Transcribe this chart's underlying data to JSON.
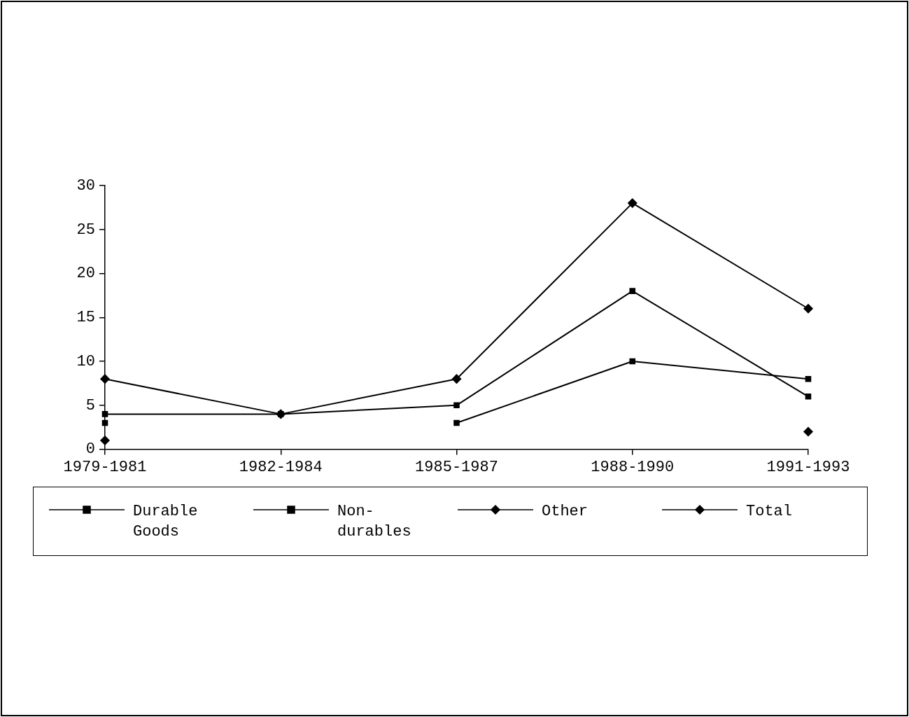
{
  "chart_data": {
    "type": "line",
    "categories": [
      "1979-1981",
      "1982-1984",
      "1985-1987",
      "1988-1990",
      "1991-1993"
    ],
    "ylim": [
      0,
      30
    ],
    "yticks": [
      0,
      5,
      10,
      15,
      20,
      25,
      30
    ],
    "grid": false,
    "legend": "bottom",
    "line_style": "solid",
    "series": [
      {
        "name": "Durable Goods",
        "color": "#000000",
        "marker": "square",
        "values": [
          4,
          4,
          5,
          18,
          6
        ]
      },
      {
        "name": "Non-durables",
        "color": "#000000",
        "marker": "square",
        "values": [
          3,
          null,
          3,
          10,
          8
        ]
      },
      {
        "name": "Other",
        "color": "#000000",
        "marker": "diamond",
        "values": [
          1,
          null,
          null,
          null,
          2
        ]
      },
      {
        "name": "Total",
        "color": "#000000",
        "marker": "diamond",
        "values": [
          8,
          4,
          8,
          28,
          16
        ]
      }
    ]
  }
}
